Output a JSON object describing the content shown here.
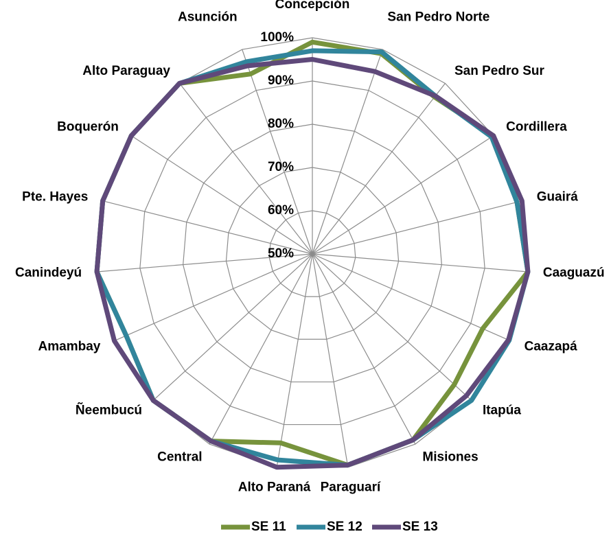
{
  "chart_data": {
    "type": "radar",
    "categories": [
      "Concepción",
      "San Pedro Norte",
      "San Pedro Sur",
      "Cordillera",
      "Guairá",
      "Caaguazú",
      "Caazapá",
      "Itapúa",
      "Misiones",
      "Paraguarí",
      "Alto Paraná",
      "Central",
      "Ñeembucú",
      "Amambay",
      "Canindeyú",
      "Pte. Hayes",
      "Boquerón",
      "Alto Paraguay",
      "Asunción"
    ],
    "series": [
      {
        "name": "SE 11",
        "color": "#77933c",
        "values": [
          99,
          99,
          96,
          100,
          98.8,
          100,
          93,
          94.6,
          98.9,
          99.5,
          94.3,
          99.2,
          100,
          97,
          100,
          100,
          100,
          100,
          94
        ]
      },
      {
        "name": "SE 12",
        "color": "#31859c",
        "values": [
          97,
          99.4,
          96.3,
          99.5,
          98.8,
          100,
          99.7,
          100,
          98.9,
          99.5,
          98.3,
          99.2,
          100,
          97,
          100,
          100,
          100,
          100,
          97
        ]
      },
      {
        "name": "SE 13",
        "color": "#5f497a",
        "values": [
          95,
          94.6,
          96.3,
          100,
          100,
          100,
          99.5,
          98.4,
          98.9,
          99.5,
          100,
          99.2,
          100,
          100,
          100,
          100,
          100,
          100,
          96
        ]
      }
    ],
    "ylim": [
      50,
      100
    ],
    "yticks": [
      {
        "value": 50,
        "label": "50%"
      },
      {
        "value": 60,
        "label": "60%"
      },
      {
        "value": 70,
        "label": "70%"
      },
      {
        "value": 80,
        "label": "80%"
      },
      {
        "value": 90,
        "label": "90%"
      },
      {
        "value": 100,
        "label": "100%"
      }
    ],
    "grid": true
  }
}
